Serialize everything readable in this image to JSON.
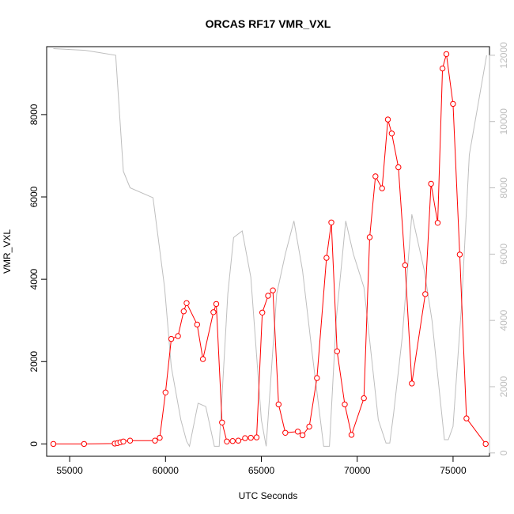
{
  "chart_data": {
    "type": "line",
    "title": "ORCAS RF17 VMR_VXL",
    "xlabel": "UTC Seconds",
    "ylabel": "VMR_VXL",
    "xlim": [
      53800,
      76900
    ],
    "ylim": [
      -300,
      9650
    ],
    "y2lim": [
      -100,
      12260
    ],
    "x_ticks": [
      55000,
      60000,
      65000,
      70000,
      75000
    ],
    "y_ticks": [
      0,
      2000,
      4000,
      6000,
      8000
    ],
    "y2_ticks": [
      0,
      2000,
      4000,
      6000,
      8000,
      10000,
      12000
    ],
    "grid": false,
    "legend": "none",
    "colors": {
      "primary": "#ff0000",
      "secondary": "#bebebe",
      "axis": "#000000"
    },
    "series": [
      {
        "axis": "left",
        "style": "line-points",
        "color": "#ff0000",
        "x": [
          54150,
          55750,
          57350,
          57500,
          57650,
          57800,
          58150,
          59450,
          59700,
          60000,
          60300,
          60650,
          60950,
          61100,
          61650,
          61950,
          62500,
          62650,
          62950,
          63200,
          63500,
          63800,
          64150,
          64450,
          64750,
          65050,
          65350,
          65600,
          65900,
          66250,
          66900,
          67150,
          67500,
          67900,
          68400,
          68650,
          68950,
          69350,
          69700,
          70350,
          70650,
          70950,
          71300,
          71600,
          71800,
          72150,
          72500,
          72850,
          73550,
          73850,
          74200,
          74450,
          74650,
          75000,
          75350,
          75700,
          76700
        ],
        "y": [
          0,
          0,
          10,
          20,
          40,
          60,
          80,
          80,
          150,
          1250,
          2550,
          2620,
          3220,
          3420,
          2900,
          2060,
          3200,
          3400,
          520,
          60,
          70,
          80,
          140,
          150,
          160,
          3190,
          3600,
          3730,
          960,
          270,
          300,
          210,
          420,
          1600,
          4520,
          5380,
          2250,
          960,
          220,
          1110,
          5020,
          6500,
          6210,
          7880,
          7540,
          6720,
          4340,
          1470,
          3640,
          6320,
          5370,
          9120,
          9470,
          8260,
          4600,
          620,
          0
        ]
      },
      {
        "axis": "right",
        "style": "line",
        "color": "#bebebe",
        "x": [
          54150,
          55800,
          57400,
          57800,
          58150,
          59350,
          59950,
          60300,
          60800,
          61100,
          61250,
          61700,
          62100,
          62550,
          62800,
          63250,
          63550,
          64000,
          64450,
          65000,
          65250,
          65800,
          66250,
          66700,
          67150,
          67650,
          68250,
          68550,
          68900,
          69400,
          69800,
          70350,
          71100,
          71500,
          71700,
          71900,
          72350,
          72850,
          73500,
          73900,
          74550,
          74750,
          75000,
          75450,
          75850,
          76750
        ],
        "y": [
          12200,
          12150,
          12000,
          8500,
          8000,
          7700,
          5000,
          2600,
          1000,
          350,
          200,
          1500,
          1400,
          200,
          200,
          4800,
          6500,
          6700,
          5300,
          1000,
          200,
          4800,
          6000,
          7000,
          5500,
          3000,
          200,
          200,
          4000,
          7000,
          6000,
          5000,
          1000,
          300,
          300,
          1200,
          3500,
          7200,
          5500,
          4000,
          400,
          400,
          800,
          4500,
          9000,
          12000
        ]
      }
    ]
  }
}
